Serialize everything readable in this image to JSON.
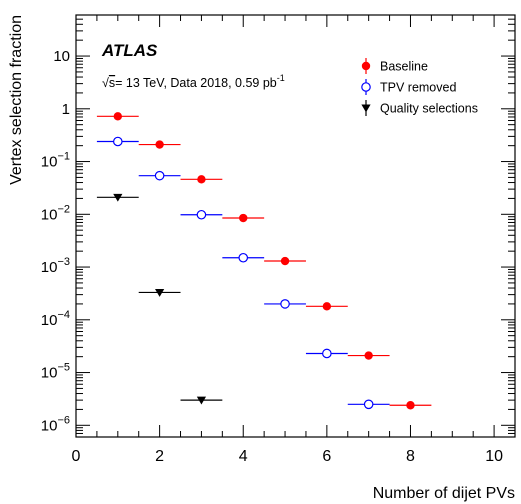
{
  "chart_data": {
    "type": "scatter",
    "title": "",
    "xlabel": "Number of dijet PVs",
    "ylabel": "Vertex selection fraction",
    "xlim": [
      0,
      10.5
    ],
    "ylim": [
      6e-07,
      60
    ],
    "yscale": "log",
    "x_ticks": [
      0,
      2,
      4,
      6,
      8,
      10
    ],
    "y_ticks": [
      {
        "value": 1e-06,
        "mantissa": "10",
        "exp": "−6"
      },
      {
        "value": 1e-05,
        "mantissa": "10",
        "exp": "−5"
      },
      {
        "value": 0.0001,
        "mantissa": "10",
        "exp": "−4"
      },
      {
        "value": 0.001,
        "mantissa": "10",
        "exp": "−3"
      },
      {
        "value": 0.01,
        "mantissa": "10",
        "exp": "−2"
      },
      {
        "value": 0.1,
        "mantissa": "10",
        "exp": "−1"
      },
      {
        "value": 1,
        "mantissa": "1",
        "exp": ""
      },
      {
        "value": 10,
        "mantissa": "10",
        "exp": ""
      }
    ],
    "annotations": {
      "experiment": "ATLAS",
      "sqrt": "√",
      "s_symbol": "s",
      "energy_text": "= 13 TeV, Data 2018, 0.59 pb",
      "lumi_exp": "-1"
    },
    "legend_position": "top-right",
    "series": [
      {
        "name": "Baseline",
        "color": "#ff0000",
        "marker": "filled-circle",
        "x": [
          1,
          2,
          3,
          4,
          5,
          6,
          7,
          8
        ],
        "y": [
          0.72,
          0.21,
          0.046,
          0.0085,
          0.0013,
          0.00018,
          2.1e-05,
          2.4e-06
        ],
        "xerr": 0.5
      },
      {
        "name": "TPV removed",
        "color": "#0000ff",
        "marker": "open-circle",
        "x": [
          1,
          2,
          3,
          4,
          5,
          6,
          7
        ],
        "y": [
          0.24,
          0.054,
          0.0098,
          0.0015,
          0.0002,
          2.3e-05,
          2.5e-06
        ],
        "xerr": 0.5
      },
      {
        "name": "Quality selections",
        "color": "#000000",
        "marker": "filled-triangle-down",
        "x": [
          1,
          2,
          3
        ],
        "y": [
          0.021,
          0.00033,
          3e-06
        ],
        "xerr": 0.5
      }
    ]
  }
}
